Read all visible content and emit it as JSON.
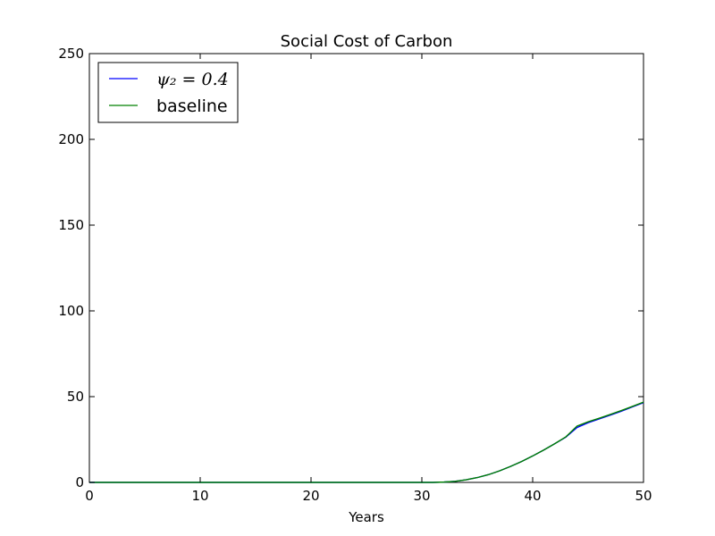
{
  "chart_data": {
    "type": "line",
    "title": "Social Cost of Carbon",
    "xlabel": "Years",
    "ylabel": "",
    "xlim": [
      0,
      50
    ],
    "ylim": [
      0,
      250
    ],
    "xticks": [
      0,
      10,
      20,
      30,
      40,
      50
    ],
    "yticks": [
      0,
      50,
      100,
      150,
      200,
      250
    ],
    "grid": false,
    "legend_position": "top-left",
    "series": [
      {
        "name": "ψ₂ = 0.4",
        "color": "#0000ff",
        "x": [
          0,
          10,
          20,
          30,
          31,
          32,
          33,
          34,
          35,
          36,
          37,
          38,
          39,
          40,
          41,
          42,
          43,
          44,
          45,
          46,
          47,
          48,
          49,
          50
        ],
        "y": [
          0,
          0,
          0,
          0,
          0.0,
          0.2,
          0.6,
          1.5,
          2.8,
          4.5,
          6.7,
          9.3,
          12.2,
          15.4,
          18.9,
          22.6,
          26.4,
          32.0,
          34.8,
          37.0,
          39.2,
          41.5,
          44.0,
          46.5
        ]
      },
      {
        "name": "baseline",
        "color": "#008000",
        "x": [
          0,
          10,
          20,
          30,
          31,
          32,
          33,
          34,
          35,
          36,
          37,
          38,
          39,
          40,
          41,
          42,
          43,
          44,
          45,
          46,
          47,
          48,
          49,
          50
        ],
        "y": [
          0,
          0,
          0,
          0,
          0.0,
          0.2,
          0.6,
          1.5,
          2.8,
          4.5,
          6.7,
          9.3,
          12.2,
          15.4,
          18.9,
          22.6,
          26.6,
          32.8,
          35.3,
          37.4,
          39.6,
          41.9,
          44.3,
          46.8
        ]
      }
    ]
  }
}
